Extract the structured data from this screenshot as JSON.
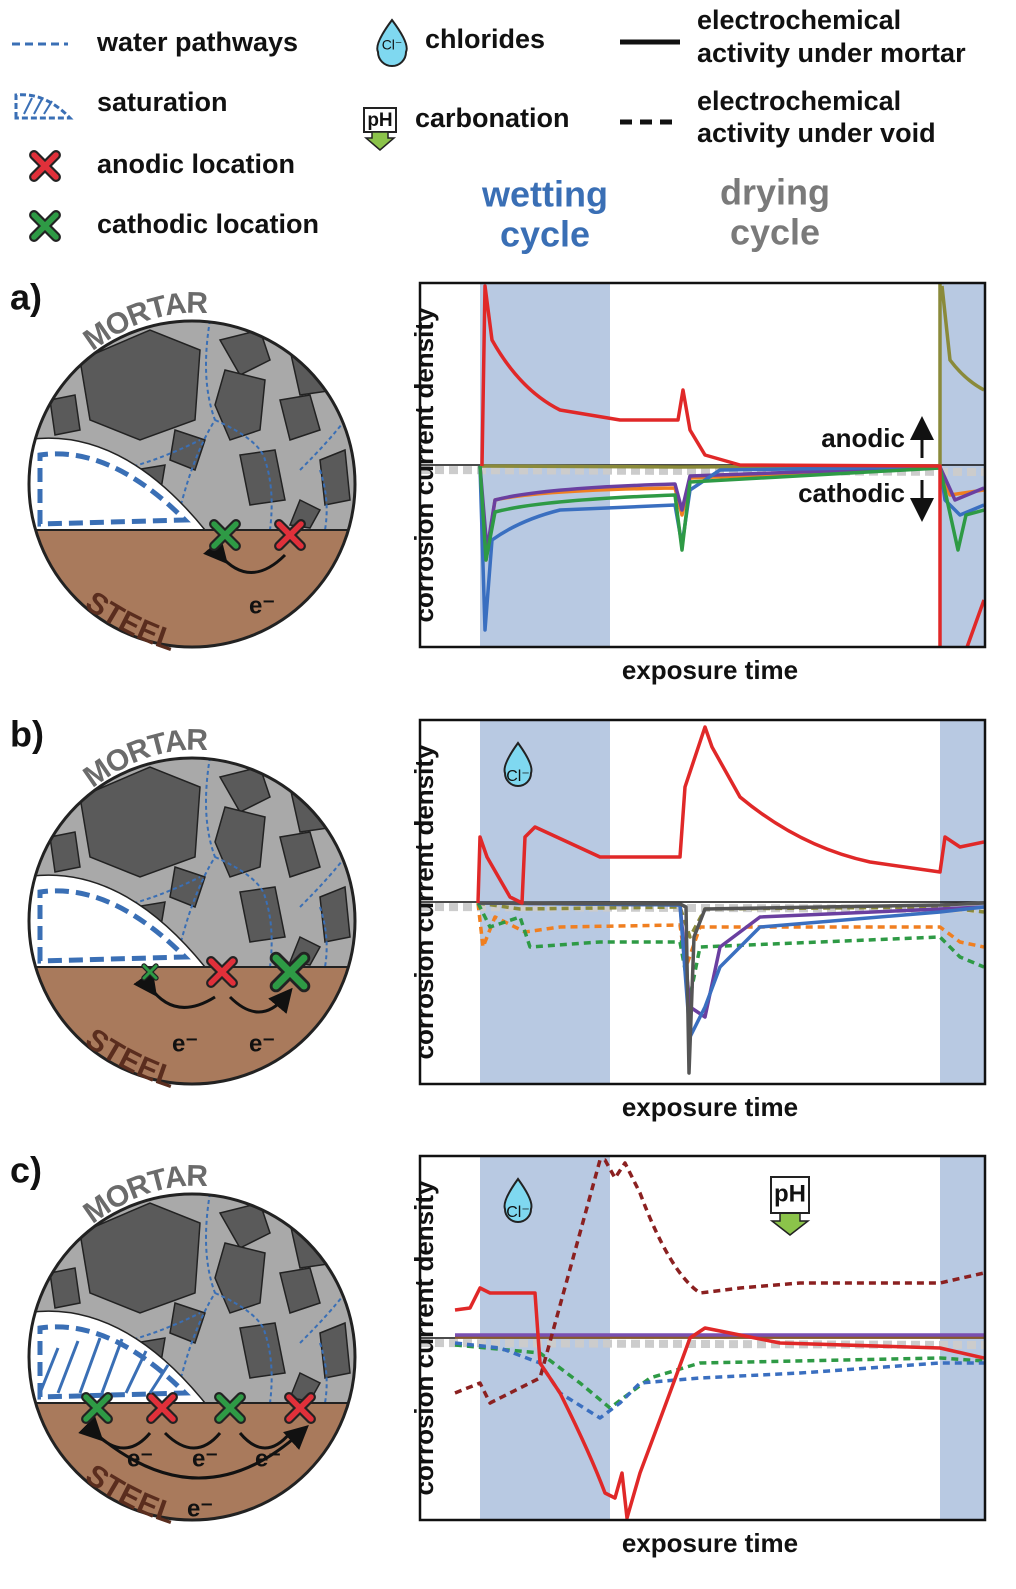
{
  "legend": {
    "water_pathways": "water pathways",
    "saturation": "saturation",
    "anodic_location": "anodic location",
    "cathodic_location": "cathodic location",
    "chlorides": "chlorides",
    "chloride_icon": "Cl⁻",
    "carbonation": "carbonation",
    "ph_icon": "pH",
    "mortar_activity": [
      "electrochemical",
      "activity under mortar"
    ],
    "void_activity": [
      "electrochemical",
      "activity under void"
    ]
  },
  "cycles": {
    "wetting": [
      "wetting",
      "cycle"
    ],
    "drying": [
      "drying",
      "cycle"
    ]
  },
  "panels": [
    {
      "label": "a)",
      "mortar": "MORTAR",
      "steel": "STEEL",
      "electrons": [
        "e⁻"
      ],
      "y_label": "corrosion current density",
      "x_label": "exposure time",
      "annotations": [
        "anodic",
        "cathodic"
      ]
    },
    {
      "label": "b)",
      "mortar": "MORTAR",
      "steel": "STEEL",
      "electrons": [
        "e⁻",
        "e⁻"
      ],
      "y_label": "corrosion current density",
      "x_label": "exposure time",
      "icons": [
        "Cl⁻"
      ]
    },
    {
      "label": "c)",
      "mortar": "MORTAR",
      "steel": "STEEL",
      "electrons": [
        "e⁻",
        "e⁻",
        "e⁻",
        "e⁻"
      ],
      "y_label": "corrosion current density",
      "x_label": "exposure time",
      "icons": [
        "Cl⁻",
        "pH"
      ]
    }
  ]
}
